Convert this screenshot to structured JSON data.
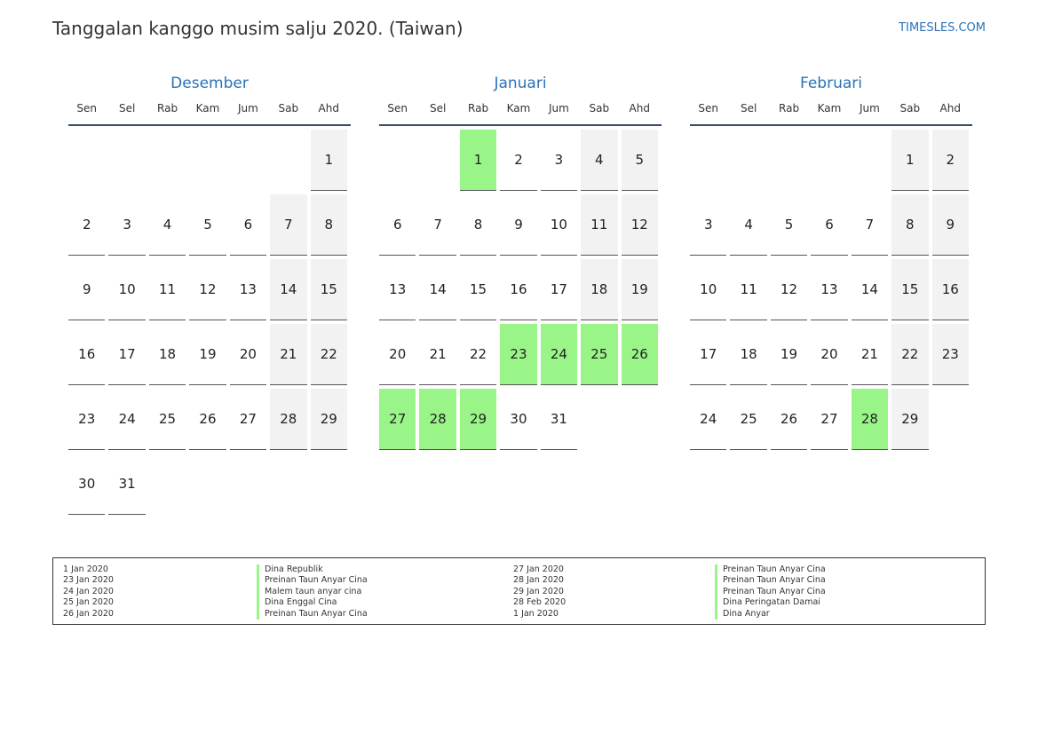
{
  "header": {
    "title": "Tanggalan kanggo musim salju 2020. (Taiwan)",
    "site": "TIMESLES.COM"
  },
  "colors": {
    "accent": "#2a72b5",
    "holiday": "#9af589",
    "weekend": "#f2f2f2"
  },
  "weekdays": [
    "Sen",
    "Sel",
    "Rab",
    "Kam",
    "Jum",
    "Sab",
    "Ahd"
  ],
  "months": [
    {
      "name": "Desember",
      "offset": 6,
      "days": 31,
      "holidays": []
    },
    {
      "name": "Januari",
      "offset": 2,
      "days": 31,
      "holidays": [
        1,
        23,
        24,
        25,
        26,
        27,
        28,
        29
      ]
    },
    {
      "name": "Februari",
      "offset": 5,
      "days": 29,
      "holidays": [
        28
      ]
    }
  ],
  "legend": [
    {
      "date": "1 Jan 2020",
      "name": "Dina Republik"
    },
    {
      "date": "23 Jan 2020",
      "name": "Preinan Taun Anyar Cina"
    },
    {
      "date": "24 Jan 2020",
      "name": "Malem taun anyar cina"
    },
    {
      "date": "25 Jan 2020",
      "name": "Dina Enggal Cina"
    },
    {
      "date": "26 Jan 2020",
      "name": "Preinan Taun Anyar Cina"
    },
    {
      "date": "27 Jan 2020",
      "name": "Preinan Taun Anyar Cina"
    },
    {
      "date": "28 Jan 2020",
      "name": "Preinan Taun Anyar Cina"
    },
    {
      "date": "29 Jan 2020",
      "name": "Preinan Taun Anyar Cina"
    },
    {
      "date": "28 Feb 2020",
      "name": "Dina Peringatan Damai"
    },
    {
      "date": "1 Jan 2020",
      "name": "Dina Anyar"
    }
  ]
}
